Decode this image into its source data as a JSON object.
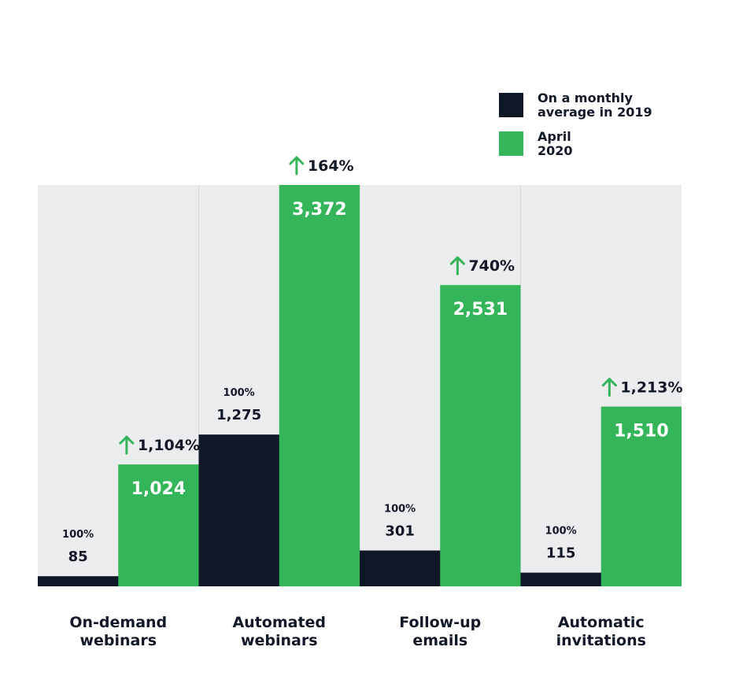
{
  "colors": {
    "dark": "#101828",
    "green": "#35B559",
    "panel": "#EBECEE",
    "text": "#111827",
    "divider": "#D5D7DB",
    "arrow": "#35B559"
  },
  "legend": {
    "items": [
      {
        "label_line1": "On a monthly",
        "label_line2": "average in 2019",
        "color_key": "dark"
      },
      {
        "label_line1": "April",
        "label_line2": "2020",
        "color_key": "green"
      }
    ]
  },
  "chart_data": {
    "type": "bar",
    "categories": [
      {
        "line1": "On-demand",
        "line2": "webinars"
      },
      {
        "line1": "Automated",
        "line2": "webinars"
      },
      {
        "line1": "Follow-up",
        "line2": "emails"
      },
      {
        "line1": "Automatic",
        "line2": "invitations"
      }
    ],
    "series": [
      {
        "name": "On a monthly average in 2019",
        "values": [
          85,
          1275,
          301,
          115
        ],
        "labels": [
          "85",
          "1,275",
          "301",
          "115"
        ],
        "pct_labels": [
          "100%",
          "100%",
          "100%",
          "100%"
        ]
      },
      {
        "name": "April 2020",
        "values": [
          1024,
          3372,
          2531,
          1510
        ],
        "labels": [
          "1,024",
          "3,372",
          "2,531",
          "1,510"
        ],
        "growth_labels": [
          "1,104%",
          "164%",
          "740%",
          "1,213%"
        ]
      }
    ],
    "ylim": [
      0,
      3372
    ],
    "grid": false,
    "legend_position": "top-right"
  }
}
